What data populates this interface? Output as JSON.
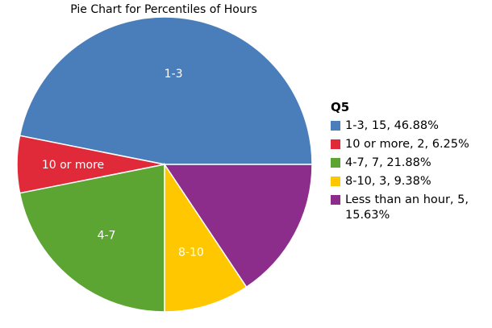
{
  "chart_data": {
    "type": "pie",
    "title": "Pie Chart for Percentiles of Hours",
    "legend_title": "Q5",
    "legend_position": "right",
    "slices": [
      {
        "category": "1-3",
        "count": 15,
        "percent": "46.88%",
        "color": "#4a7ebb",
        "legend_label": "1-3, 15, 46.88%",
        "slice_label": "1-3"
      },
      {
        "category": "10 or more",
        "count": 2,
        "percent": "6.25%",
        "color": "#e02a3a",
        "legend_label": "10 or more, 2, 6.25%",
        "slice_label": "10 or more"
      },
      {
        "category": "4-7",
        "count": 7,
        "percent": "21.88%",
        "color": "#5da532",
        "legend_label": "4-7, 7, 21.88%",
        "slice_label": "4-7"
      },
      {
        "category": "8-10",
        "count": 3,
        "percent": "9.38%",
        "color": "#fec700",
        "legend_label": "8-10, 3, 9.38%",
        "slice_label": "8-10"
      },
      {
        "category": "Less than an hour",
        "count": 5,
        "percent": "15.63%",
        "color": "#8c2d8c",
        "legend_label": "Less than an hour, 5, 15.63%",
        "slice_label": ""
      }
    ]
  }
}
